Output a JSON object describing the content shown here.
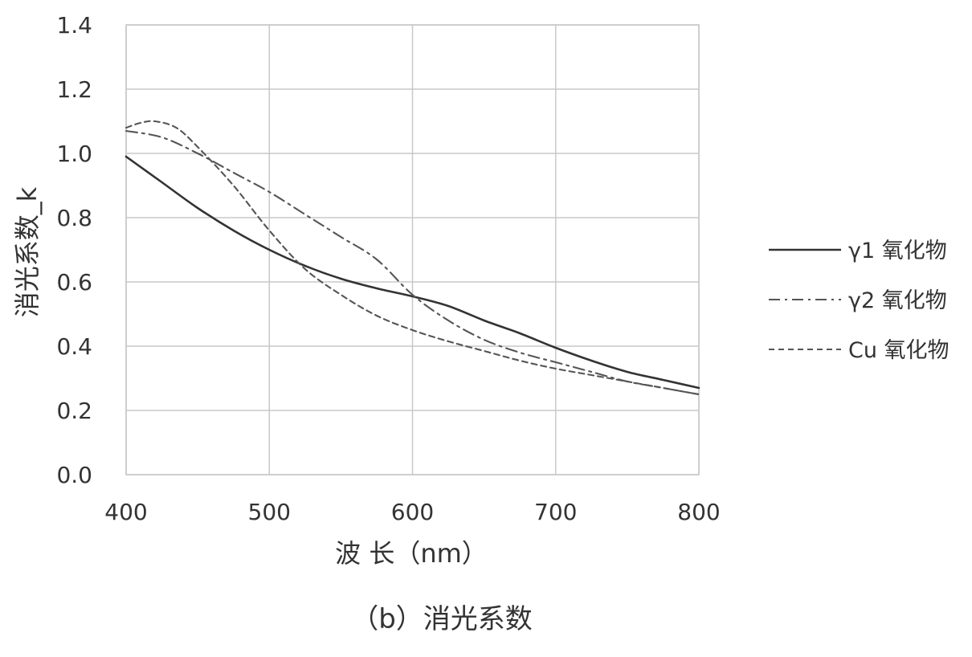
{
  "chart_data": {
    "type": "line",
    "title": "",
    "caption": "（b）消光系数",
    "xlabel": "波 长（nm）",
    "ylabel": "消光系数_k",
    "xlim": [
      400,
      800
    ],
    "ylim": [
      0,
      1.4
    ],
    "x_ticks": [
      400,
      500,
      600,
      700,
      800
    ],
    "y_ticks": [
      0.0,
      0.2,
      0.4,
      0.6,
      0.8,
      1.0,
      1.2,
      1.4
    ],
    "x_tick_labels": [
      "400",
      "500",
      "600",
      "700",
      "800"
    ],
    "y_tick_labels": [
      "0.0",
      "0.2",
      "0.4",
      "0.6",
      "0.8",
      "1.0",
      "1.2",
      "1.4"
    ],
    "grid": true,
    "legend_position": "right",
    "series": [
      {
        "name": "γ1 氧化物",
        "line_style": "solid",
        "color": "#333333",
        "x": [
          400,
          425,
          450,
          475,
          500,
          525,
          550,
          575,
          600,
          625,
          650,
          675,
          700,
          725,
          750,
          775,
          800
        ],
        "y": [
          0.99,
          0.91,
          0.83,
          0.76,
          0.7,
          0.65,
          0.61,
          0.58,
          0.555,
          0.525,
          0.48,
          0.44,
          0.395,
          0.355,
          0.32,
          0.295,
          0.27
        ]
      },
      {
        "name": "γ2 氧化物",
        "line_style": "dash-dot",
        "color": "#555555",
        "x": [
          400,
          425,
          450,
          475,
          500,
          525,
          550,
          575,
          600,
          625,
          650,
          675,
          700,
          725,
          750,
          775,
          800
        ],
        "y": [
          1.07,
          1.05,
          1.0,
          0.94,
          0.88,
          0.81,
          0.74,
          0.67,
          0.56,
          0.48,
          0.42,
          0.38,
          0.35,
          0.32,
          0.29,
          0.27,
          0.25
        ]
      },
      {
        "name": "Cu 氧化物",
        "line_style": "dashed",
        "color": "#555555",
        "x": [
          400,
          410,
          420,
          435,
          450,
          475,
          500,
          525,
          550,
          575,
          600,
          625,
          650,
          675,
          700,
          725,
          750,
          775,
          800
        ],
        "y": [
          1.08,
          1.095,
          1.1,
          1.08,
          1.02,
          0.9,
          0.76,
          0.64,
          0.56,
          0.495,
          0.45,
          0.415,
          0.385,
          0.355,
          0.33,
          0.31,
          0.29,
          0.27,
          0.25
        ]
      }
    ]
  }
}
